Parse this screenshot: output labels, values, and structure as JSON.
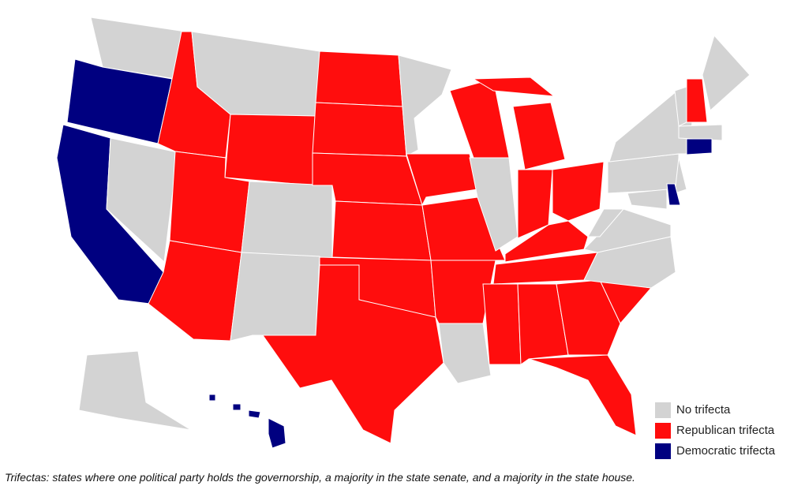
{
  "legend": {
    "items": [
      {
        "name": "No trifecta",
        "color": "#d3d3d3"
      },
      {
        "name": "Republican trifecta",
        "color": "#ff0d0d"
      },
      {
        "name": "Democratic trifecta",
        "color": "#000080"
      }
    ]
  },
  "caption": "Trifectas: states where one political party holds the governorship, a majority in the state senate, and a majority in the state house."
}
